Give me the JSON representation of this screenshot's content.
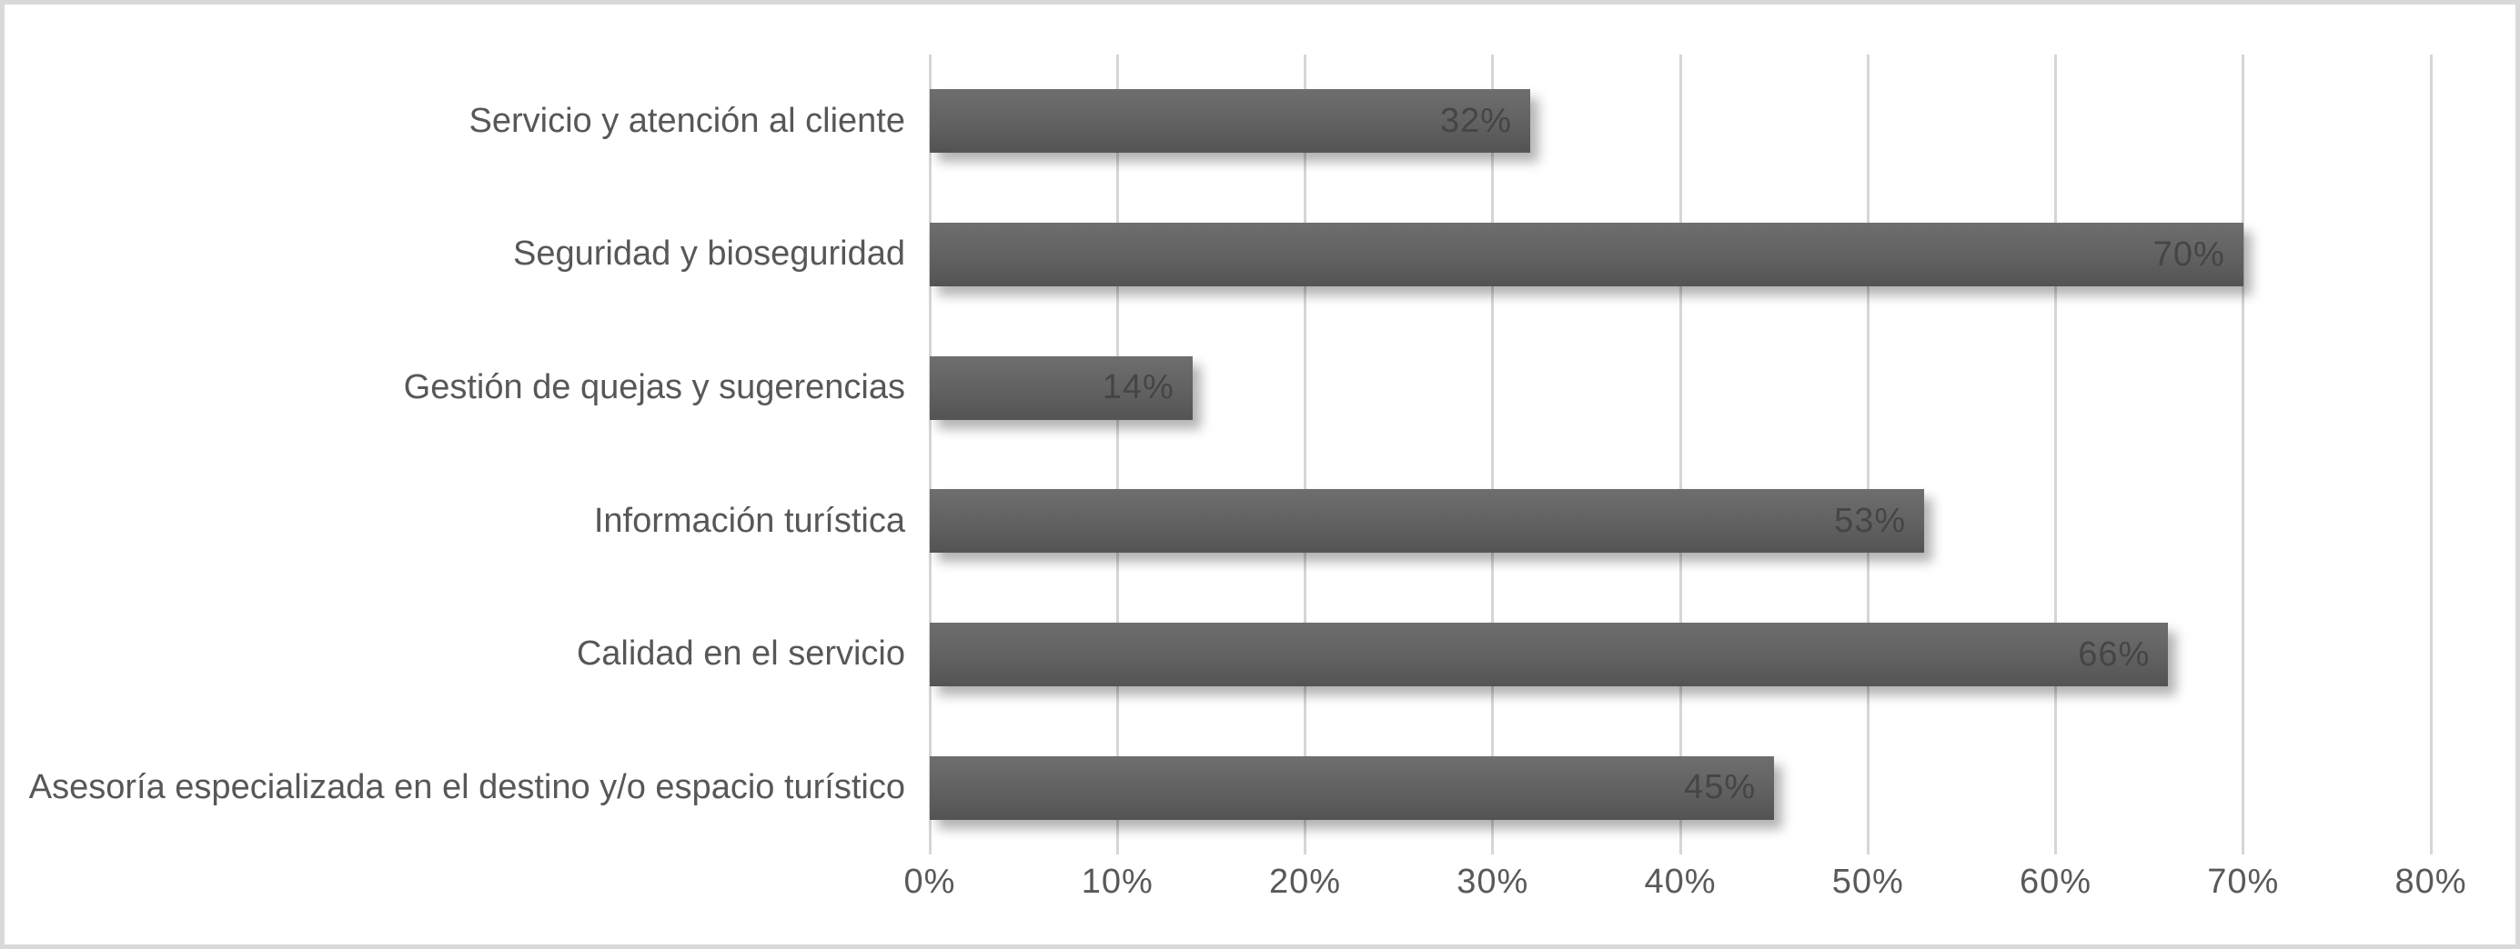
{
  "chart_data": {
    "type": "bar",
    "orientation": "horizontal",
    "title": "",
    "xlabel": "",
    "ylabel": "",
    "categories": [
      "Servicio y atención al cliente",
      "Seguridad y bioseguridad",
      "Gestión de quejas y sugerencias",
      "Información turística",
      "Calidad en el servicio",
      "Asesoría especializada en el destino y/o espacio turístico"
    ],
    "values": [
      32,
      70,
      14,
      53,
      66,
      45
    ],
    "value_labels": [
      "32%",
      "70%",
      "14%",
      "53%",
      "66%",
      "45%"
    ],
    "xlim": [
      0,
      80
    ],
    "x_ticks": [
      0,
      10,
      20,
      30,
      40,
      50,
      60,
      70,
      80
    ],
    "x_tick_labels": [
      "0%",
      "10%",
      "20%",
      "30%",
      "40%",
      "50%",
      "60%",
      "70%",
      "80%"
    ],
    "grid": "vertical-only",
    "legend": "none",
    "colors": {
      "bar_gradient_top": "#6e6e6e",
      "bar_gradient_bottom": "#535353",
      "bar_value_label": "#454545",
      "category_label": "#575757",
      "tick_label": "#595959",
      "gridline": "#d6d6d6",
      "frame_border": "#d9d9d9",
      "background": "#ffffff"
    }
  }
}
